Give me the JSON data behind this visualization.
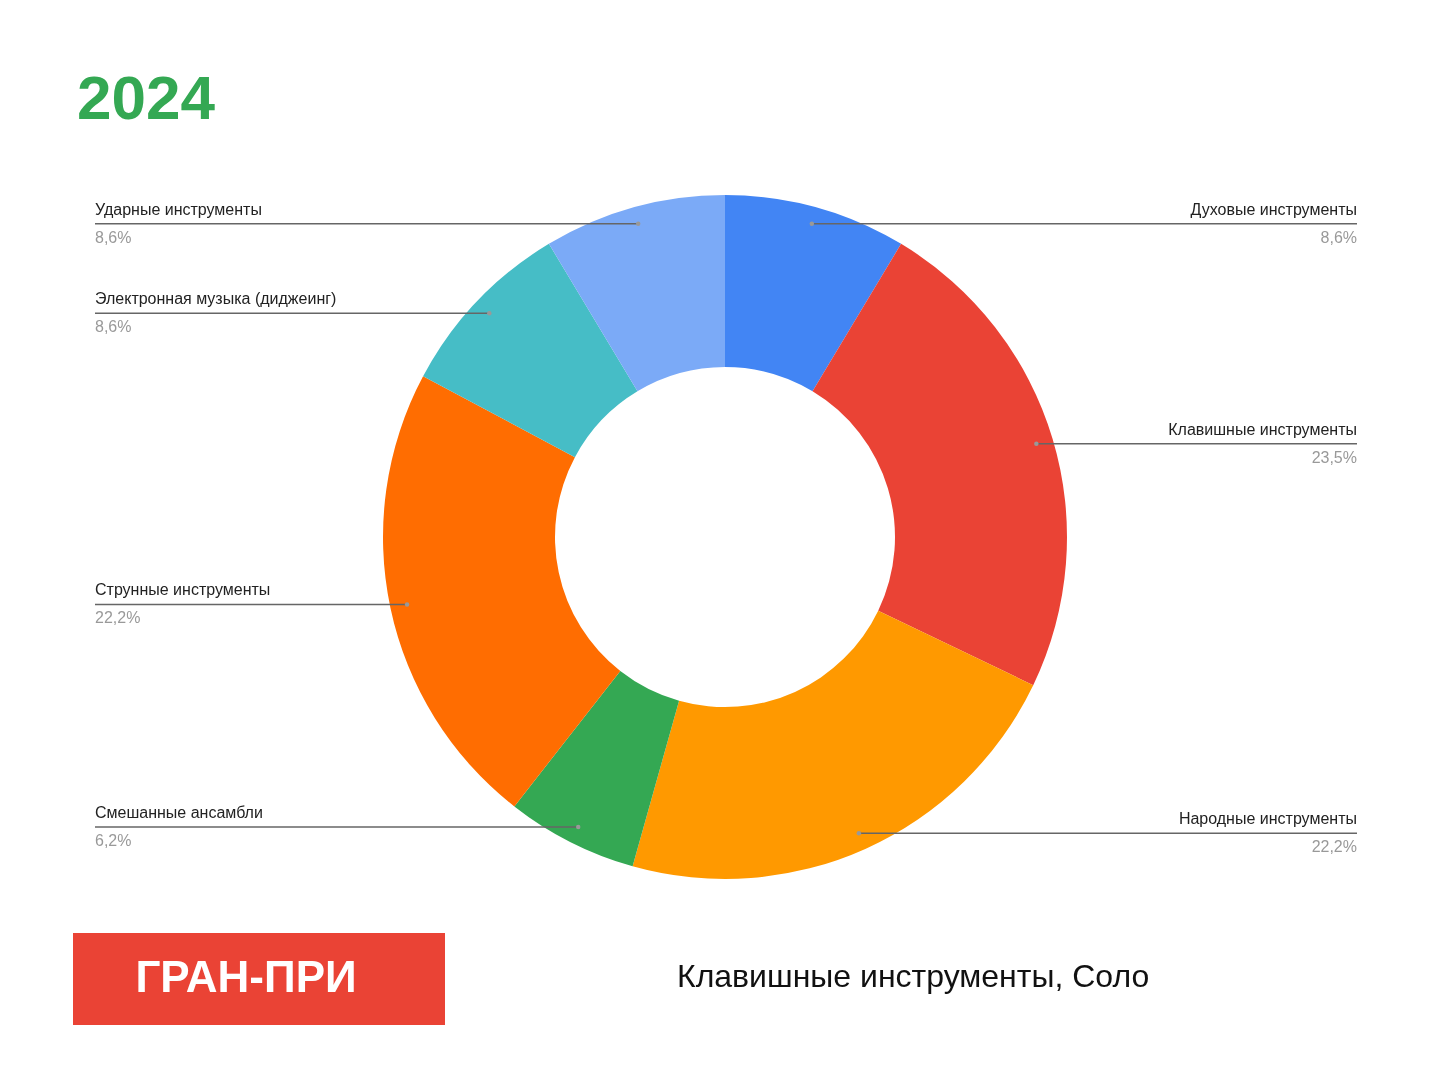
{
  "chart_data": {
    "type": "donut",
    "title": "2024",
    "categories": [
      "Духовые инструменты",
      "Клавишные инструменты",
      "Народные инструменты",
      "Смешанные ансамбли",
      "Струнные инструменты",
      "Электронная музыка (диджеинг)",
      "Ударные инструменты"
    ],
    "values": [
      8.6,
      23.5,
      22.2,
      6.2,
      22.2,
      8.6,
      8.6
    ],
    "value_labels": [
      "8,6%",
      "23,5%",
      "22,2%",
      "6,2%",
      "22,2%",
      "8,6%",
      "8,6%"
    ],
    "colors": [
      "#4285f4",
      "#ea4335",
      "#ff9900",
      "#34a853",
      "#ff6d01",
      "#46bdc6",
      "#7baaf7"
    ],
    "annotations": [
      "ГРАН-ПРИ",
      "Клавишные инструменты, Соло"
    ]
  }
}
